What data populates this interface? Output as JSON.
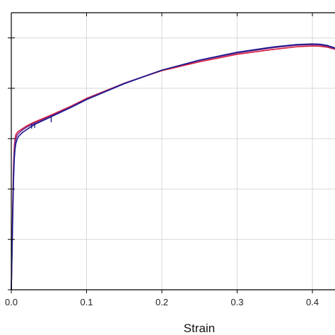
{
  "chart_data": {
    "type": "line",
    "title": "",
    "xlabel": "Strain",
    "ylabel": "",
    "xlim": [
      0,
      0.43
    ],
    "ylim": [
      0,
      1.1
    ],
    "x_ticks": [
      {
        "value": 0.0,
        "label": "0.0"
      },
      {
        "value": 0.1,
        "label": "0.1"
      },
      {
        "value": 0.2,
        "label": "0.2"
      },
      {
        "value": 0.3,
        "label": "0.3"
      },
      {
        "value": 0.4,
        "label": "0.4"
      }
    ],
    "y_ticks": [
      0.0,
      0.2,
      0.4,
      0.6,
      0.8,
      1.0
    ],
    "grid": true,
    "legend": "none",
    "series": [
      {
        "color": "#d81b3c",
        "x": [
          0,
          0.001,
          0.002,
          0.003,
          0.004,
          0.005,
          0.006,
          0.008,
          0.01,
          0.015,
          0.02,
          0.03,
          0.05,
          0.08,
          0.1,
          0.15,
          0.2,
          0.25,
          0.3,
          0.35,
          0.38,
          0.4,
          0.41,
          0.42,
          0.43
        ],
        "y": [
          0,
          0.18,
          0.36,
          0.5,
          0.57,
          0.6,
          0.615,
          0.625,
          0.63,
          0.64,
          0.65,
          0.665,
          0.69,
          0.73,
          0.76,
          0.82,
          0.87,
          0.905,
          0.935,
          0.955,
          0.965,
          0.968,
          0.967,
          0.963,
          0.955
        ]
      },
      {
        "color": "#7a2a8c",
        "x": [
          0,
          0.001,
          0.002,
          0.003,
          0.004,
          0.005,
          0.006,
          0.008,
          0.01,
          0.015,
          0.02,
          0.03,
          0.05,
          0.08,
          0.1,
          0.15,
          0.2,
          0.25,
          0.3,
          0.35,
          0.38,
          0.4,
          0.41,
          0.42,
          0.43
        ],
        "y": [
          0,
          0.17,
          0.34,
          0.48,
          0.55,
          0.585,
          0.6,
          0.615,
          0.622,
          0.635,
          0.645,
          0.66,
          0.686,
          0.727,
          0.757,
          0.82,
          0.872,
          0.91,
          0.94,
          0.962,
          0.971,
          0.973,
          0.972,
          0.967,
          0.957
        ]
      },
      {
        "color": "#1a1a8c",
        "x": [
          0,
          0.001,
          0.002,
          0.003,
          0.004,
          0.005,
          0.006,
          0.008,
          0.01,
          0.015,
          0.02,
          0.03,
          0.05,
          0.08,
          0.1,
          0.15,
          0.2,
          0.25,
          0.3,
          0.35,
          0.38,
          0.4,
          0.41,
          0.42,
          0.43
        ],
        "y": [
          0,
          0.15,
          0.3,
          0.44,
          0.52,
          0.56,
          0.58,
          0.6,
          0.61,
          0.625,
          0.635,
          0.655,
          0.683,
          0.725,
          0.755,
          0.818,
          0.872,
          0.912,
          0.943,
          0.965,
          0.974,
          0.976,
          0.975,
          0.97,
          0.96
        ]
      }
    ],
    "glitches": [
      {
        "x": 0.027,
        "y_from": 0.66,
        "y_to": 0.64
      },
      {
        "x": 0.031,
        "y_from": 0.663,
        "y_to": 0.643
      },
      {
        "x": 0.053,
        "y_from": 0.69,
        "y_to": 0.665
      }
    ]
  }
}
